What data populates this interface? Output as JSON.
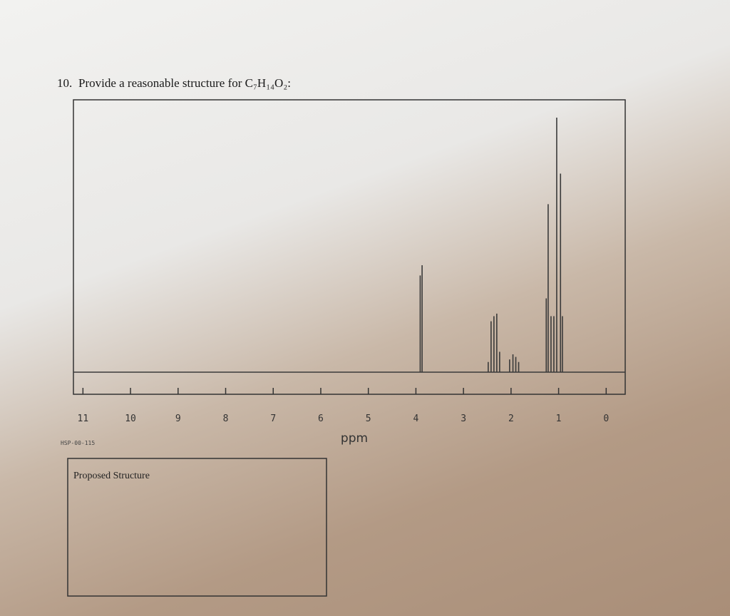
{
  "question": {
    "number": "10.",
    "text": "Provide a reasonable structure for C₇H₁₄O₂:"
  },
  "chart_data": {
    "type": "spectrum",
    "x_label": "ppm",
    "code": "HSP-00-115",
    "xlim": [
      11.2,
      -0.4
    ],
    "xticks": [
      11,
      10,
      9,
      8,
      7,
      6,
      5,
      4,
      3,
      2,
      1,
      0
    ],
    "ylim": [
      0,
      100
    ],
    "color": "#3a3a3a",
    "x": [
      3.91,
      3.87,
      2.48,
      2.42,
      2.36,
      2.3,
      2.24,
      2.03,
      1.96,
      1.9,
      1.84,
      1.26,
      1.22,
      1.16,
      1.1,
      1.04,
      0.96,
      0.92
    ],
    "values": [
      38,
      42,
      4,
      20,
      22,
      23,
      8,
      5,
      7,
      6,
      4,
      29,
      66,
      22,
      22,
      100,
      78,
      22
    ]
  },
  "structure_box": {
    "label": "Proposed Structure"
  }
}
